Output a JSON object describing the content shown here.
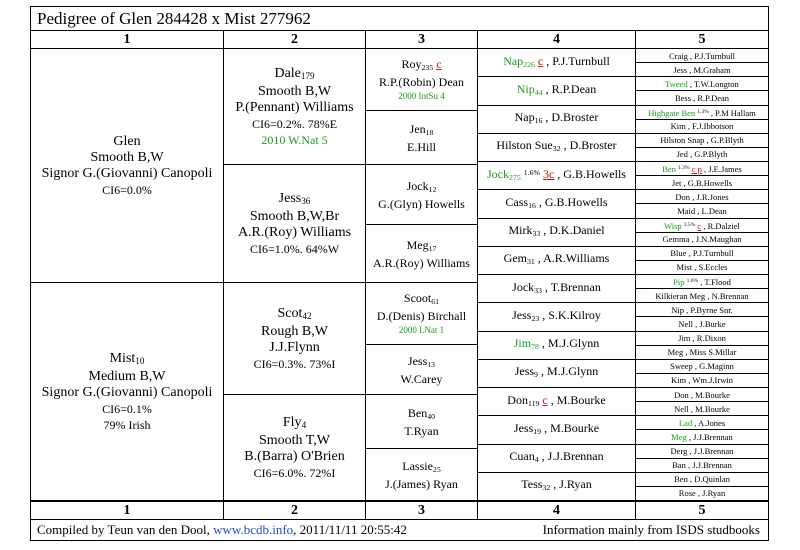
{
  "title": "Pedigree of   Glen 284428 x Mist 277962",
  "columns": [
    "1",
    "2",
    "3",
    "4",
    "5"
  ],
  "footer": {
    "compiled": "Compiled by Teun van den Dool,",
    "site": "www.bcdb.info",
    "timestamp": ", 2011/11/11 20:55:42",
    "source": "Information mainly from ISDS studbooks"
  },
  "gen1": {
    "glen": {
      "name": "Glen",
      "coat": "Smooth B,W",
      "owner": "Signor G.(Giovanni) Canopoli",
      "ci": "CI6=0.0%"
    },
    "mist": {
      "name": "Mist",
      "sub": "10",
      "coat": "Medium B,W",
      "owner": "Signor G.(Giovanni) Canopoli",
      "ci": "CI6=0.1%",
      "irish": "79% Irish"
    }
  },
  "gen2": {
    "dale": {
      "name": "Dale",
      "sub": "179",
      "coat": "Smooth B,W",
      "owner": "P.(Pennant) Williams",
      "ci": "CI6=0.2%. 78%E",
      "award": "2010 W.Nat 5"
    },
    "jess": {
      "name": "Jess",
      "sub": "36",
      "coat": "Smooth B,W,Br",
      "owner": "A.R.(Roy) Williams",
      "ci": "CI6=1.0%. 64%W"
    },
    "scot": {
      "name": "Scot",
      "sub": "42",
      "coat": "Rough B,W",
      "owner": "J.J.Flynn",
      "ci": "CI6=0.3%. 73%I"
    },
    "fly": {
      "name": "Fly",
      "sub": "4",
      "coat": "Smooth T,W",
      "owner": "B.(Barra) O'Brien",
      "ci": "CI6=6.0%. 72%I"
    }
  },
  "gen3": {
    "roy": {
      "name": "Roy",
      "sub": "235",
      "mark": "c",
      "owner": "R.P.(Robin) Dean",
      "award": "2000 IntSu 4"
    },
    "jen": {
      "name": "Jen",
      "sub": "18",
      "owner": "E.Hill"
    },
    "jock": {
      "name": "Jock",
      "sub": "12",
      "owner": "G.(Glyn) Howells"
    },
    "meg": {
      "name": "Meg",
      "sub": "17",
      "owner": "A.R.(Roy) Williams"
    },
    "scoot": {
      "name": "Scoot",
      "sub": "61",
      "owner": "D.(Denis) Birchall",
      "award": "2000 I.Nat 1"
    },
    "jess": {
      "name": "Jess",
      "sub": "13",
      "owner": "W.Carey"
    },
    "ben": {
      "name": "Ben",
      "sub": "40",
      "owner": "T.Ryan"
    },
    "lassie": {
      "name": "Lassie",
      "sub": "25",
      "owner": "J.(James) Ryan"
    }
  },
  "gen4": [
    {
      "name": "Nap",
      "sub": "226",
      "mark": "c",
      "owner": ", P.J.Turnbull",
      "green": true
    },
    {
      "name": "Nip",
      "sub": "44",
      "owner": ", R.P.Dean",
      "green": true
    },
    {
      "name": "Nap",
      "sub": "16",
      "owner": ", D.Broster"
    },
    {
      "name": "Hilston Sue",
      "sub": "32",
      "owner": ", D.Broster"
    },
    {
      "name": "Jock",
      "sub": "275",
      "sup": "1.6%",
      "mark": "3c",
      "owner": ", G.B.Howells",
      "green": true
    },
    {
      "name": "Cass",
      "sub": "16",
      "owner": ", G.B.Howells"
    },
    {
      "name": "Mirk",
      "sub": "33",
      "owner": ", D.K.Daniel"
    },
    {
      "name": "Gem",
      "sub": "31",
      "owner": ", A.R.Williams"
    },
    {
      "name": "Jock",
      "sub": "33",
      "owner": ", T.Brennan"
    },
    {
      "name": "Jess",
      "sub": "23",
      "owner": ", S.K.Kilroy"
    },
    {
      "name": "Jim",
      "sub": "78",
      "owner": ", M.J.Glynn",
      "green": true
    },
    {
      "name": "Jess",
      "sub": "9",
      "owner": ", M.J.Glynn"
    },
    {
      "name": "Don",
      "sub": "119",
      "mark": "c",
      "owner": ", M.Bourke"
    },
    {
      "name": "Jess",
      "sub": "19",
      "owner": ", M.Bourke"
    },
    {
      "name": "Cuan",
      "sub": "4",
      "owner": ", J.J.Brennan"
    },
    {
      "name": "Tess",
      "sub": "32",
      "owner": ", J.Ryan"
    }
  ],
  "gen5": [
    {
      "name": "Craig",
      "owner": ", P.J.Turnbull"
    },
    {
      "name": "Jess",
      "owner": ", M.Graham"
    },
    {
      "name": "Tweed",
      "owner": ", T.W.Longton",
      "green": true
    },
    {
      "name": "Bess",
      "owner": ", R.P.Dean"
    },
    {
      "name": "Highgate Ben",
      "sup": "1.3%",
      "owner": ", P.M Hallam",
      "green": true
    },
    {
      "name": "Kim",
      "owner": ", F.J.Ibbotson"
    },
    {
      "name": "Hilston Snap",
      "owner": ", G.P.Blyth"
    },
    {
      "name": "Jed",
      "owner": ", G.P.Blyth"
    },
    {
      "name": "Ben",
      "sup": "1.3%",
      "mark": "c p",
      "owner": ", J.E.James",
      "green": true
    },
    {
      "name": "Jet",
      "owner": ", G.B.Howells"
    },
    {
      "name": "Don",
      "owner": ", J.R.Jones"
    },
    {
      "name": "Maid",
      "owner": ", L.Dean"
    },
    {
      "name": "Wisp",
      "sup": "3.5%",
      "mark": "c",
      "owner": ", R.Dalziel",
      "green": true
    },
    {
      "name": "Gemma",
      "owner": ", J.N.Maughan"
    },
    {
      "name": "Blue",
      "owner": ", P.J.Turnbull"
    },
    {
      "name": "Mist",
      "owner": ", S.Eccles"
    },
    {
      "name": "Pip",
      "sup": "1.6%",
      "owner": ", T.Flood",
      "green": true
    },
    {
      "name": "Kilkieran Meg",
      "owner": ", N.Brennan"
    },
    {
      "name": "Nip",
      "owner": ", P.Byrne Snr."
    },
    {
      "name": "Nell",
      "owner": ", J.Burke"
    },
    {
      "name": "Jim",
      "owner": ", R.Dixon"
    },
    {
      "name": "Meg",
      "owner": ", Miss S.Millar"
    },
    {
      "name": "Sweep",
      "owner": ", G.Maginn"
    },
    {
      "name": "Kim",
      "owner": ", Wm.J.Irwin"
    },
    {
      "name": "Don",
      "owner": ", M.Bourke"
    },
    {
      "name": "Nell",
      "owner": ", M.Bourke"
    },
    {
      "name": "Lad",
      "owner": ", A.Jones",
      "green": true
    },
    {
      "name": "Meg",
      "owner": ", J.J.Brennan",
      "green": true
    },
    {
      "name": "Derg",
      "owner": ", J.J.Brennan"
    },
    {
      "name": "Ban",
      "owner": ", J.J.Brennan"
    },
    {
      "name": "Ben",
      "owner": ", D.Quinlan"
    },
    {
      "name": "Rose",
      "owner": ", J.Ryan"
    }
  ]
}
